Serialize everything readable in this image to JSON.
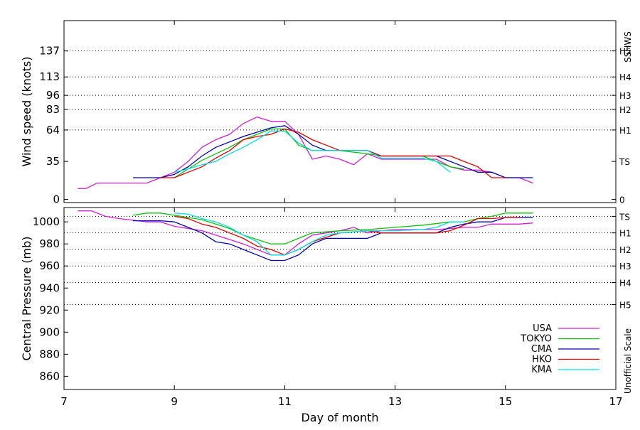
{
  "chart_data": [
    {
      "type": "line",
      "name": "wind",
      "ylabel": "Wind speed (knots)",
      "xlim": [
        7,
        17
      ],
      "ylim": [
        -3,
        165
      ],
      "yticks": [
        0,
        35,
        64,
        83,
        96,
        113,
        137
      ],
      "right_title": "SSHWS",
      "right_marks": [
        {
          "label": "0",
          "y": 0
        },
        {
          "label": "TS",
          "y": 35
        },
        {
          "label": "H1",
          "y": 64
        },
        {
          "label": "H2",
          "y": 83
        },
        {
          "label": "H3",
          "y": 96
        },
        {
          "label": "H4",
          "y": 113
        },
        {
          "label": "H5",
          "y": 137
        }
      ],
      "grid_values": [
        64,
        83,
        96,
        113,
        137
      ],
      "series": [
        {
          "name": "USA",
          "color": "#d020d0",
          "points": [
            [
              7.25,
              10
            ],
            [
              7.4,
              10
            ],
            [
              7.6,
              15
            ],
            [
              8.5,
              15
            ],
            [
              8.75,
              20
            ],
            [
              9,
              25
            ],
            [
              9.25,
              35
            ],
            [
              9.5,
              48
            ],
            [
              9.75,
              55
            ],
            [
              10,
              60
            ],
            [
              10.25,
              70
            ],
            [
              10.5,
              76
            ],
            [
              10.75,
              72
            ],
            [
              11,
              72
            ],
            [
              11.25,
              60
            ],
            [
              11.5,
              37
            ],
            [
              11.75,
              40
            ],
            [
              12,
              37
            ],
            [
              12.25,
              32
            ],
            [
              12.5,
              42
            ],
            [
              12.75,
              37
            ],
            [
              13,
              37
            ],
            [
              13.5,
              37
            ],
            [
              13.75,
              37
            ],
            [
              14,
              30
            ],
            [
              14.25,
              27
            ],
            [
              14.5,
              27
            ],
            [
              14.75,
              25
            ],
            [
              15,
              20
            ],
            [
              15.25,
              20
            ],
            [
              15.5,
              15
            ]
          ]
        },
        {
          "name": "TOKYO",
          "color": "#10c010",
          "points": [
            [
              9,
              20
            ],
            [
              9.5,
              36
            ],
            [
              9.75,
              42
            ],
            [
              10,
              48
            ],
            [
              10.25,
              55
            ],
            [
              10.5,
              60
            ],
            [
              10.75,
              65
            ],
            [
              11,
              65
            ],
            [
              11.25,
              50
            ],
            [
              11.5,
              45
            ],
            [
              12,
              45
            ],
            [
              12.5,
              42
            ],
            [
              12.75,
              40
            ],
            [
              13.5,
              40
            ],
            [
              13.75,
              35
            ],
            [
              14,
              30
            ],
            [
              14.25,
              28
            ]
          ]
        },
        {
          "name": "CMA",
          "color": "#0000b0",
          "points": [
            [
              8.25,
              20
            ],
            [
              8.75,
              20
            ],
            [
              9,
              23
            ],
            [
              9.25,
              30
            ],
            [
              9.5,
              40
            ],
            [
              9.75,
              48
            ],
            [
              10,
              53
            ],
            [
              10.25,
              58
            ],
            [
              10.5,
              62
            ],
            [
              10.75,
              66
            ],
            [
              11,
              68
            ],
            [
              11.25,
              60
            ],
            [
              11.5,
              50
            ],
            [
              11.75,
              45
            ],
            [
              12,
              45
            ],
            [
              12.5,
              45
            ],
            [
              12.75,
              40
            ],
            [
              13.75,
              40
            ],
            [
              14,
              35
            ],
            [
              14.25,
              30
            ],
            [
              14.5,
              25
            ],
            [
              14.75,
              25
            ],
            [
              15,
              20
            ],
            [
              15.5,
              20
            ]
          ]
        },
        {
          "name": "HKO",
          "color": "#e00000",
          "points": [
            [
              8.75,
              20
            ],
            [
              9,
              20
            ],
            [
              9.25,
              25
            ],
            [
              9.5,
              30
            ],
            [
              9.75,
              38
            ],
            [
              10,
              45
            ],
            [
              10.25,
              55
            ],
            [
              10.5,
              58
            ],
            [
              10.75,
              60
            ],
            [
              11,
              65
            ],
            [
              11.25,
              62
            ],
            [
              11.5,
              55
            ],
            [
              11.75,
              50
            ],
            [
              12,
              45
            ],
            [
              12.5,
              45
            ],
            [
              12.75,
              40
            ],
            [
              14,
              40
            ],
            [
              14.25,
              35
            ],
            [
              14.5,
              30
            ],
            [
              14.75,
              20
            ],
            [
              15,
              20
            ]
          ]
        },
        {
          "name": "KMA",
          "color": "#00e0e0",
          "points": [
            [
              9,
              25
            ],
            [
              9.25,
              28
            ],
            [
              9.5,
              32
            ],
            [
              9.75,
              35
            ],
            [
              10,
              42
            ],
            [
              10.25,
              48
            ],
            [
              10.5,
              55
            ],
            [
              10.75,
              63
            ],
            [
              11,
              63
            ],
            [
              11.25,
              52
            ],
            [
              11.5,
              45
            ],
            [
              12.5,
              45
            ],
            [
              12.75,
              38
            ],
            [
              13.5,
              38
            ],
            [
              13.75,
              35
            ],
            [
              14,
              25
            ]
          ]
        }
      ]
    },
    {
      "type": "line",
      "name": "pressure",
      "ylabel": "Central Pressure (mb)",
      "xlabel": "Day of month",
      "xlim": [
        7,
        17
      ],
      "ylim": [
        848,
        1013
      ],
      "xticks": [
        7,
        9,
        11,
        13,
        15,
        17
      ],
      "yticks": [
        860,
        880,
        900,
        920,
        940,
        960,
        980,
        1000
      ],
      "right_title": "Unofficial Scale",
      "right_marks": [
        {
          "label": "TS",
          "y": 1005
        },
        {
          "label": "H1",
          "y": 990
        },
        {
          "label": "H2",
          "y": 975
        },
        {
          "label": "H3",
          "y": 960
        },
        {
          "label": "H4",
          "y": 945
        },
        {
          "label": "H5",
          "y": 925
        }
      ],
      "grid_values": [
        1005,
        990,
        975,
        960,
        945,
        925
      ],
      "series": [
        {
          "name": "USA",
          "color": "#d020d0",
          "points": [
            [
              7.25,
              1010
            ],
            [
              7.5,
              1010
            ],
            [
              7.75,
              1005
            ],
            [
              8,
              1003
            ],
            [
              8.5,
              1000
            ],
            [
              8.75,
              1000
            ],
            [
              9,
              996
            ],
            [
              9.25,
              994
            ],
            [
              9.5,
              992
            ],
            [
              9.75,
              988
            ],
            [
              10,
              984
            ],
            [
              10.25,
              980
            ],
            [
              10.5,
              975
            ],
            [
              10.75,
              970
            ],
            [
              11,
              970
            ],
            [
              11.25,
              980
            ],
            [
              11.5,
              988
            ],
            [
              11.75,
              990
            ],
            [
              12,
              992
            ],
            [
              12.25,
              995
            ],
            [
              12.5,
              990
            ],
            [
              12.75,
              992
            ],
            [
              13,
              993
            ],
            [
              13.5,
              993
            ],
            [
              13.75,
              993
            ],
            [
              14,
              994
            ],
            [
              14.25,
              995
            ],
            [
              14.5,
              995
            ],
            [
              14.75,
              998
            ],
            [
              15,
              998
            ],
            [
              15.25,
              998
            ],
            [
              15.5,
              999
            ]
          ]
        },
        {
          "name": "TOKYO",
          "color": "#10c010",
          "points": [
            [
              8.25,
              1006
            ],
            [
              8.5,
              1008
            ],
            [
              8.75,
              1008
            ],
            [
              9,
              1006
            ],
            [
              9.25,
              1004
            ],
            [
              9.5,
              1002
            ],
            [
              9.75,
              998
            ],
            [
              10,
              994
            ],
            [
              10.25,
              988
            ],
            [
              10.5,
              984
            ],
            [
              10.75,
              980
            ],
            [
              11,
              980
            ],
            [
              11.25,
              985
            ],
            [
              11.5,
              990
            ],
            [
              12,
              992
            ],
            [
              12.5,
              993
            ],
            [
              13,
              995
            ],
            [
              13.5,
              997
            ],
            [
              14,
              1000
            ],
            [
              14.25,
              1000
            ],
            [
              14.5,
              1003
            ],
            [
              14.75,
              1005
            ],
            [
              15,
              1008
            ],
            [
              15.5,
              1008
            ]
          ]
        },
        {
          "name": "CMA",
          "color": "#0000b0",
          "points": [
            [
              8.25,
              1001
            ],
            [
              8.75,
              1001
            ],
            [
              9,
              1000
            ],
            [
              9.25,
              995
            ],
            [
              9.5,
              990
            ],
            [
              9.75,
              982
            ],
            [
              10,
              980
            ],
            [
              10.25,
              975
            ],
            [
              10.5,
              970
            ],
            [
              10.75,
              965
            ],
            [
              11,
              965
            ],
            [
              11.25,
              970
            ],
            [
              11.5,
              980
            ],
            [
              11.75,
              985
            ],
            [
              12,
              985
            ],
            [
              12.5,
              985
            ],
            [
              12.75,
              990
            ],
            [
              13.5,
              990
            ],
            [
              13.75,
              990
            ],
            [
              14,
              995
            ],
            [
              14.25,
              998
            ],
            [
              14.5,
              1000
            ],
            [
              14.75,
              1000
            ],
            [
              15,
              1004
            ],
            [
              15.5,
              1004
            ]
          ]
        },
        {
          "name": "HKO",
          "color": "#e00000",
          "points": [
            [
              9,
              1005
            ],
            [
              9.25,
              1003
            ],
            [
              9.5,
              998
            ],
            [
              9.75,
              995
            ],
            [
              10,
              990
            ],
            [
              10.25,
              985
            ],
            [
              10.5,
              978
            ],
            [
              10.75,
              975
            ],
            [
              11,
              970
            ],
            [
              11.25,
              975
            ],
            [
              11.5,
              982
            ],
            [
              11.75,
              986
            ],
            [
              12,
              990
            ],
            [
              12.5,
              992
            ],
            [
              12.75,
              990
            ],
            [
              13.75,
              990
            ],
            [
              14,
              992
            ],
            [
              14.25,
              997
            ],
            [
              14.5,
              1003
            ],
            [
              14.75,
              1003
            ],
            [
              15,
              1004
            ],
            [
              15.25,
              1004
            ]
          ]
        },
        {
          "name": "KMA",
          "color": "#00e0e0",
          "points": [
            [
              9,
              1008
            ],
            [
              9.25,
              1007
            ],
            [
              9.5,
              1003
            ],
            [
              9.75,
              1000
            ],
            [
              10,
              995
            ],
            [
              10.25,
              988
            ],
            [
              10.5,
              982
            ],
            [
              10.75,
              970
            ],
            [
              11,
              970
            ],
            [
              11.25,
              975
            ],
            [
              11.5,
              982
            ],
            [
              11.75,
              988
            ],
            [
              12,
              990
            ],
            [
              12.5,
              992
            ],
            [
              13,
              992
            ],
            [
              13.5,
              993
            ],
            [
              13.75,
              995
            ],
            [
              14,
              1000
            ],
            [
              14.25,
              1000
            ]
          ]
        }
      ]
    }
  ]
}
